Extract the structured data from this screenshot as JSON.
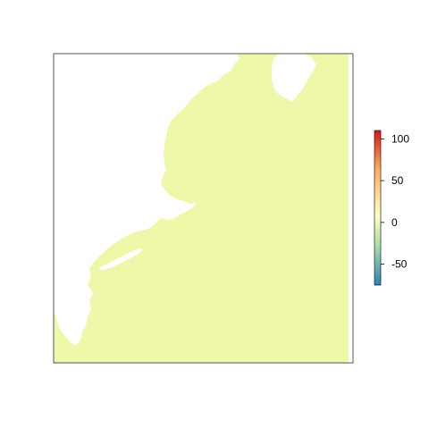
{
  "map": {
    "fill_color": "#eef8a8",
    "frame_color": "#555555"
  },
  "legend": {
    "min": -75,
    "max": 110,
    "ticks": [
      100,
      50,
      0,
      -50
    ],
    "tick_labels": [
      "100",
      "50",
      "0",
      "-50"
    ],
    "colormap": [
      "#2b83ba",
      "#abdda4",
      "#ffffbf",
      "#fdae61",
      "#d7191c"
    ]
  }
}
